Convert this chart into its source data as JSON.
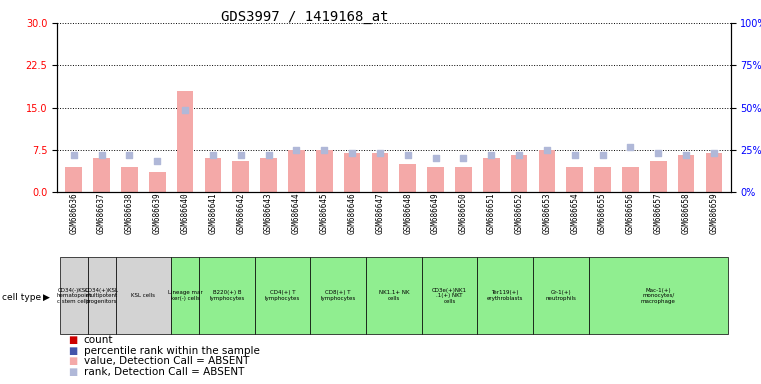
{
  "title": "GDS3997 / 1419168_at",
  "samples": [
    "GSM686636",
    "GSM686637",
    "GSM686638",
    "GSM686639",
    "GSM686640",
    "GSM686641",
    "GSM686642",
    "GSM686643",
    "GSM686644",
    "GSM686645",
    "GSM686646",
    "GSM686647",
    "GSM686648",
    "GSM686649",
    "GSM686650",
    "GSM686651",
    "GSM686652",
    "GSM686653",
    "GSM686654",
    "GSM686655",
    "GSM686656",
    "GSM686657",
    "GSM686658",
    "GSM686659"
  ],
  "value_absent": [
    4.5,
    6.0,
    4.5,
    3.5,
    18.0,
    6.0,
    5.5,
    6.0,
    7.5,
    7.5,
    7.0,
    7.0,
    5.0,
    4.5,
    4.5,
    6.0,
    6.5,
    7.5,
    4.5,
    4.5,
    4.5,
    5.5,
    6.5,
    7.0
  ],
  "rank_absent": [
    6.5,
    6.5,
    6.5,
    5.5,
    14.5,
    6.5,
    6.5,
    6.5,
    7.5,
    7.5,
    7.0,
    7.0,
    6.5,
    6.0,
    6.0,
    6.5,
    6.5,
    7.5,
    6.5,
    6.5,
    8.0,
    7.0,
    6.5,
    7.0
  ],
  "cell_type_groups": [
    {
      "label": "CD34(-)KSL\nhematopoiet\nc stem cells",
      "start": 0,
      "end": 1,
      "color": "#d3d3d3"
    },
    {
      "label": "CD34(+)KSL\nmultipotent\nprogenitors",
      "start": 1,
      "end": 2,
      "color": "#d3d3d3"
    },
    {
      "label": "KSL cells",
      "start": 2,
      "end": 4,
      "color": "#d3d3d3"
    },
    {
      "label": "Lineage mar\nker(-) cells",
      "start": 4,
      "end": 5,
      "color": "#90ee90"
    },
    {
      "label": "B220(+) B\nlymphocytes",
      "start": 5,
      "end": 7,
      "color": "#90ee90"
    },
    {
      "label": "CD4(+) T\nlymphocytes",
      "start": 7,
      "end": 9,
      "color": "#90ee90"
    },
    {
      "label": "CD8(+) T\nlymphocytes",
      "start": 9,
      "end": 11,
      "color": "#90ee90"
    },
    {
      "label": "NK1.1+ NK\ncells",
      "start": 11,
      "end": 13,
      "color": "#90ee90"
    },
    {
      "label": "CD3e(+)NK1\n.1(+) NKT\ncells",
      "start": 13,
      "end": 15,
      "color": "#90ee90"
    },
    {
      "label": "Ter119(+)\nerythroblasts",
      "start": 15,
      "end": 17,
      "color": "#90ee90"
    },
    {
      "label": "Gr-1(+)\nneutrophils",
      "start": 17,
      "end": 19,
      "color": "#90ee90"
    },
    {
      "label": "Mac-1(+)\nmonocytes/\nmacrophage",
      "start": 19,
      "end": 24,
      "color": "#90ee90"
    }
  ],
  "ylim_left": [
    0,
    30
  ],
  "ylim_right": [
    0,
    100
  ],
  "yticks_left": [
    0,
    7.5,
    15,
    22.5,
    30
  ],
  "yticks_right": [
    0,
    25,
    50,
    75,
    100
  ],
  "absent_value_color": "#f4a9a8",
  "absent_rank_color": "#b0b8d8",
  "title_fontsize": 10,
  "tick_fontsize": 7,
  "legend_fontsize": 7.5
}
